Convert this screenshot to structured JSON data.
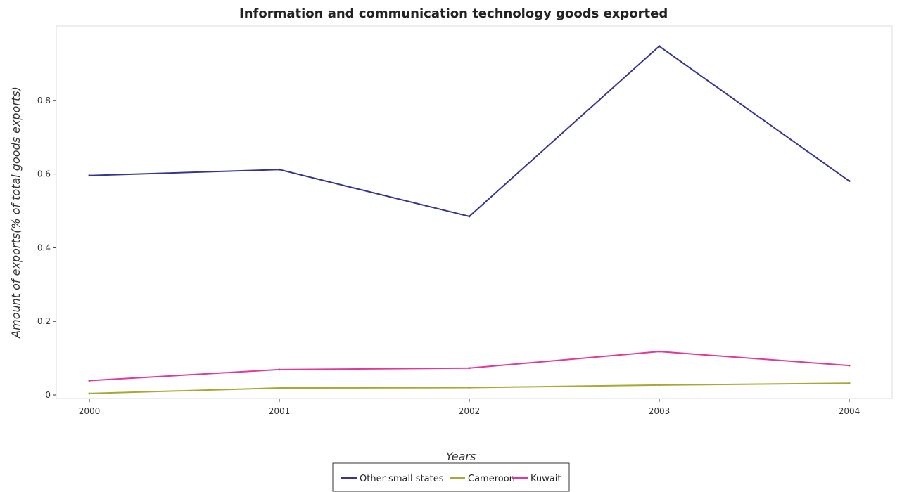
{
  "chart_data": {
    "type": "line",
    "title": "Information and communication technology goods exported",
    "xlabel": "Years",
    "ylabel": "Amount of exports(% of total goods exports)",
    "categories": [
      "2000",
      "2001",
      "2002",
      "2003",
      "2004"
    ],
    "ylim": [
      0,
      1.0
    ],
    "yticks": [
      0,
      0.2,
      0.4,
      0.6,
      0.8
    ],
    "ytick_labels": [
      "0",
      "0.2",
      "0.4",
      "0.6",
      "0.8"
    ],
    "grid": false,
    "legend_position": "bottom-center",
    "series": [
      {
        "name": "Other small states",
        "color": "#35358f",
        "values": [
          0.596,
          0.612,
          0.485,
          0.947,
          0.581
        ]
      },
      {
        "name": "Cameroon",
        "color": "#a8a832",
        "values": [
          0.004,
          0.019,
          0.02,
          0.027,
          0.032
        ]
      },
      {
        "name": "Kuwait",
        "color": "#e0389c",
        "values": [
          0.039,
          0.069,
          0.073,
          0.118,
          0.08
        ]
      }
    ]
  }
}
